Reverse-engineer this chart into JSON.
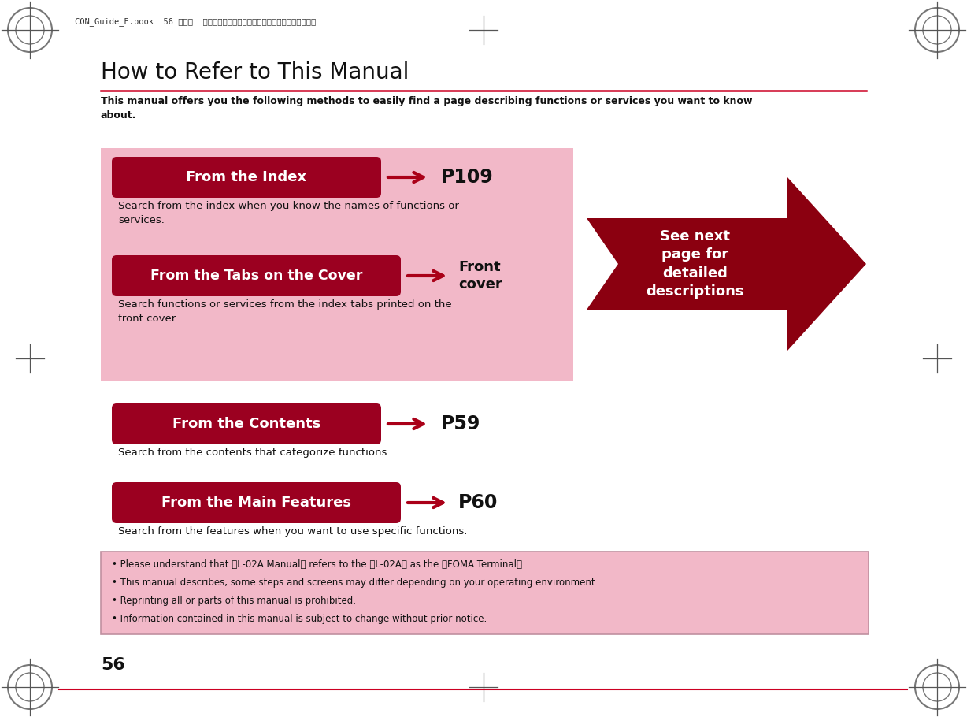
{
  "title": "How to Refer to This Manual",
  "subtitle": "This manual offers you the following methods to easily find a page describing functions or services you want to know\nabout.",
  "bg_color": "#ffffff",
  "page_num": "56",
  "header_text": "CON_Guide_E.book  56 ページ  ２００８年１１月２６日　水歰日　午後６時４３分",
  "pink_box_color": "#f2b8c8",
  "dark_red": "#8b0010",
  "arrow_red": "#aa0018",
  "button_color": "#9b0020",
  "button_text_color": "#ffffff",
  "sections": [
    {
      "button_label": "From the Index",
      "page_ref": "P109",
      "description": "Search from the index when you know the names of functions or\nservices.",
      "in_pink_box": true
    },
    {
      "button_label": "From the Tabs on the Cover",
      "page_ref": "Front\ncover",
      "description": "Search functions or services from the index tabs printed on the\nfront cover.",
      "in_pink_box": true
    },
    {
      "button_label": "From the Contents",
      "page_ref": "P59",
      "description": "Search from the contents that categorize functions.",
      "in_pink_box": false
    },
    {
      "button_label": "From the Main Features",
      "page_ref": "P60",
      "description": "Search from the features when you want to use specific functions.",
      "in_pink_box": false
    }
  ],
  "big_arrow_text": "See next\npage for\ndetailed\ndescriptions",
  "notes": [
    "• Please understand that ［L-02A Manual］ refers to the ［L-02A］ as the ［FOMA Terminal］ .",
    "• This manual describes, some steps and screens may differ depending on your operating environment.",
    "• Reprinting all or parts of this manual is prohibited.",
    "• Information contained in this manual is subject to change without prior notice."
  ],
  "note_bg": "#f2b8c8",
  "note_border": "#c090a0",
  "title_underline_color": "#cc0022",
  "bottom_line_color": "#cc0022"
}
